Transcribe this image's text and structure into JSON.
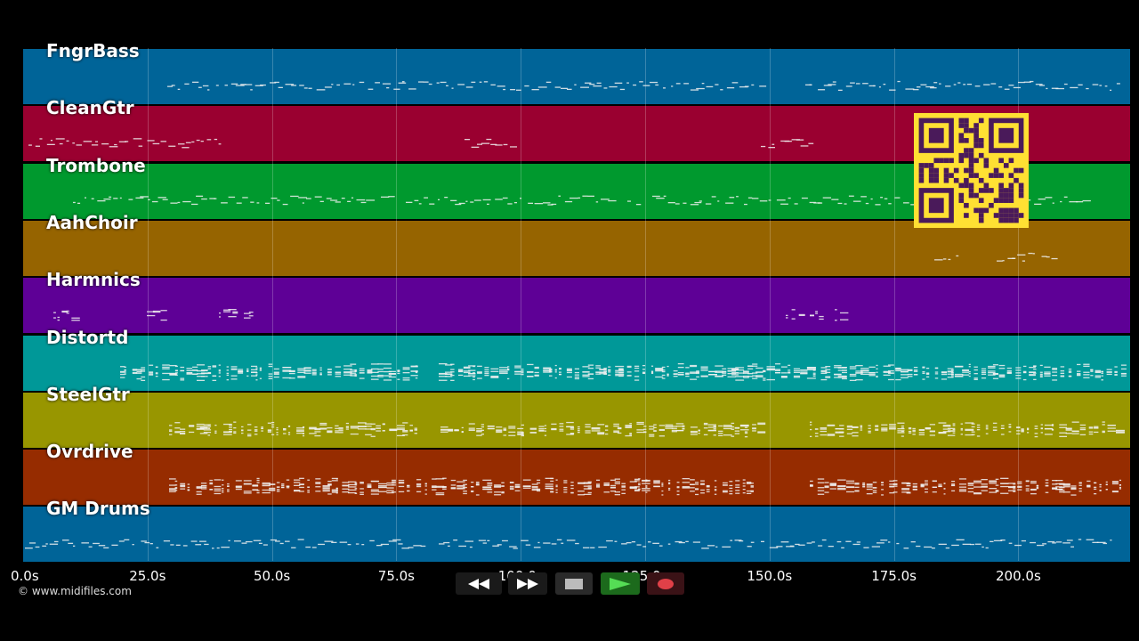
{
  "tracks": [
    {
      "name": "FngrBass",
      "color": "#006498"
    },
    {
      "name": "CleanGtr",
      "color": "#9a0030"
    },
    {
      "name": "Trombone",
      "color": "#00992e"
    },
    {
      "name": "AahChoir",
      "color": "#966400"
    },
    {
      "name": "Harmnics",
      "color": "#5e0096"
    },
    {
      "name": "Distortd",
      "color": "#009898"
    },
    {
      "name": "SteelGtr",
      "color": "#989600"
    },
    {
      "name": "Ovrdrive",
      "color": "#962c00"
    },
    {
      "name": "GM Drums",
      "color": "#006498"
    }
  ],
  "timeline": {
    "ticks": [
      "0.0s",
      "25.0s",
      "50.0s",
      "75.0s",
      "100.0s",
      "125.0s",
      "150.0s",
      "175.0s",
      "200.0s"
    ]
  },
  "copyright": "© www.midifiles.com",
  "transport": {
    "rewind_icon": "rewind-icon",
    "fast_forward_icon": "fast-forward-icon",
    "stop_icon": "stop-icon",
    "play_icon": "play-icon",
    "record_icon": "record-icon"
  },
  "qr_code_icon": "qr-code-icon"
}
